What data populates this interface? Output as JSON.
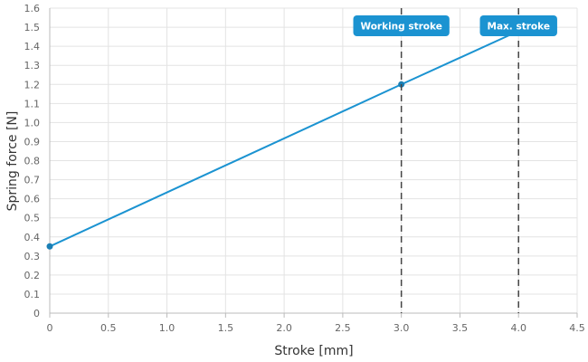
{
  "chart_data": {
    "type": "line",
    "title": "",
    "xlabel": "Stroke [mm]",
    "ylabel": "Spring force [N]",
    "xlim": [
      0,
      4.5
    ],
    "ylim": [
      0,
      1.6
    ],
    "x_ticks": [
      "0",
      "0.5",
      "1.0",
      "1.5",
      "2.0",
      "2.5",
      "3.0",
      "3.5",
      "4.0",
      "4.5"
    ],
    "y_ticks": [
      "0",
      "0.1",
      "0.2",
      "0.3",
      "0.4",
      "0.5",
      "0.6",
      "0.7",
      "0.8",
      "0.9",
      "1.0",
      "1.1",
      "1.2",
      "1.3",
      "1.4",
      "1.5",
      "1.6"
    ],
    "grid": true,
    "series": [
      {
        "x": [
          0,
          3.0,
          4.0
        ],
        "y": [
          0.35,
          1.2,
          1.48
        ],
        "marked_points": [
          0,
          1
        ]
      }
    ],
    "vertical_markers": [
      {
        "x": 3.0,
        "label": "Working stroke"
      },
      {
        "x": 4.0,
        "label": "Max. stroke"
      }
    ],
    "colors": {
      "line": "#1b93d1",
      "marker_label_bg": "#1b93d1",
      "marker_line": "#444444",
      "grid": "#e3e3e3",
      "axis": "#bbbbbb"
    }
  }
}
